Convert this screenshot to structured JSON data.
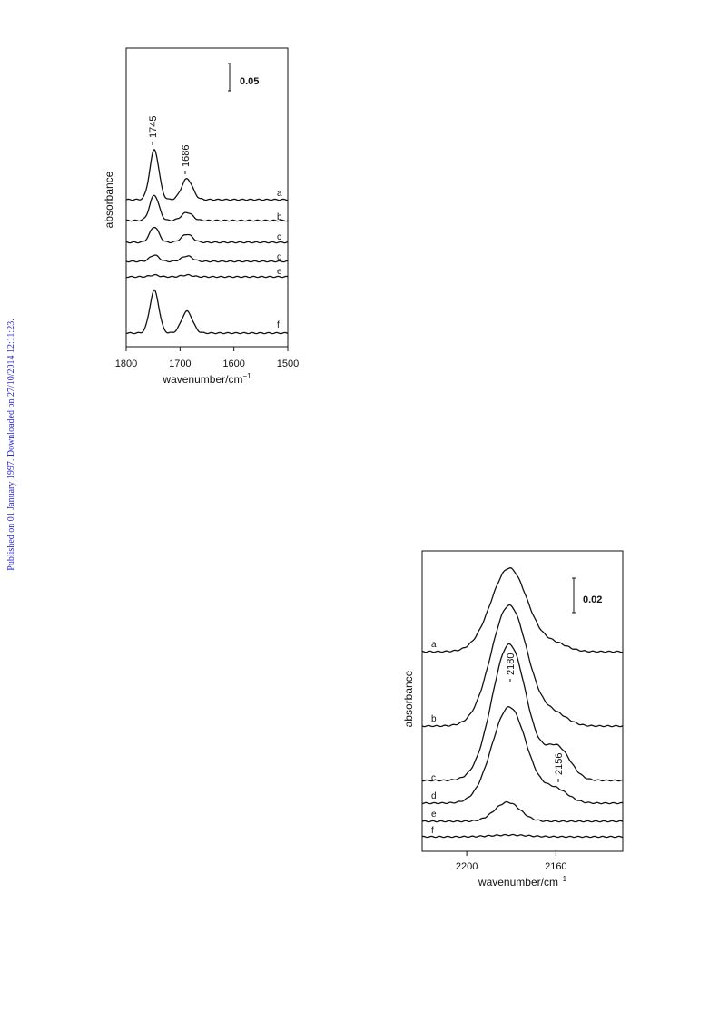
{
  "side_note": "Published on 01 January 1997. Downloaded on 27/10/2014 12:11:23.",
  "figures": [
    {
      "y_label": "absorbance",
      "x_label": "wavenumber/cm",
      "x_label_sup": "−1",
      "xlim": [
        1800,
        1500
      ],
      "xticks": [
        1800,
        1700,
        1600,
        1500
      ],
      "scale_bar": "0.05",
      "peaks": [
        "1745",
        "1686"
      ],
      "traces": [
        "a",
        "b",
        "c",
        "d",
        "e",
        "f"
      ]
    },
    {
      "y_label": "absorbance",
      "x_label": "wavenumber/cm",
      "x_label_sup": "−1",
      "xlim": [
        2220,
        2130
      ],
      "xticks": [
        2200,
        2160
      ],
      "scale_bar": "0.02",
      "peaks": [
        "2180",
        "2156"
      ],
      "traces": [
        "a",
        "b",
        "c",
        "d",
        "e",
        "f"
      ]
    }
  ]
}
